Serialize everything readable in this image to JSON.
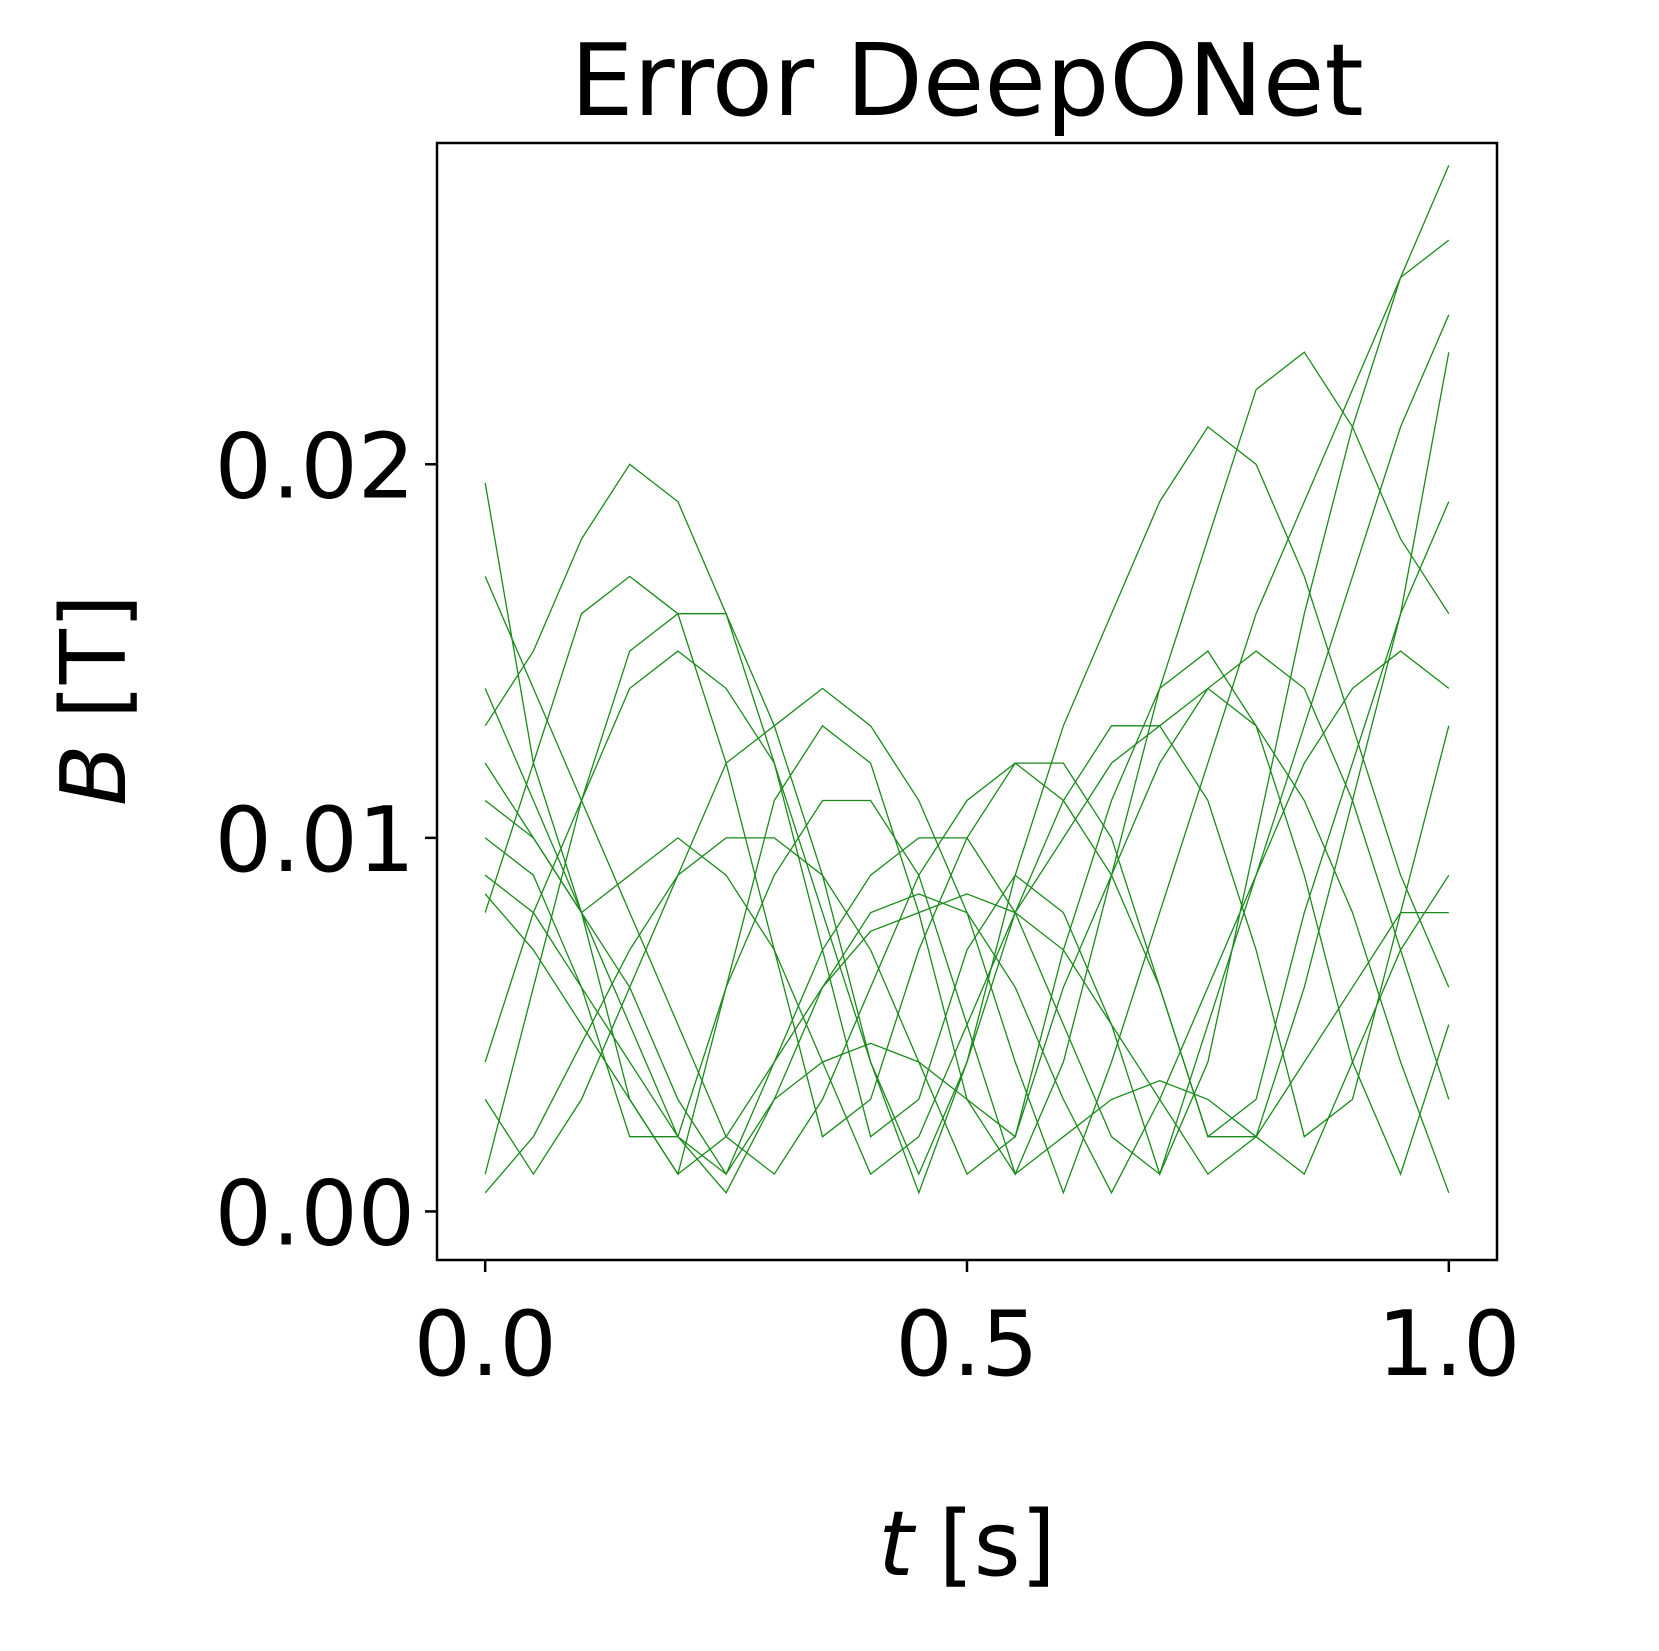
{
  "chart_data": {
    "type": "line",
    "title": "Error DeepONet",
    "xlabel": {
      "symbol": "t",
      "unit": "[s]"
    },
    "ylabel": {
      "symbol": "B",
      "unit": "[T]"
    },
    "color": "#1a8a1a",
    "xlim": [
      -0.05,
      1.05
    ],
    "ylim": [
      -0.0013,
      0.0286
    ],
    "xticks": [
      {
        "value": 0,
        "label": "0.0"
      },
      {
        "value": 0.5,
        "label": "0.5"
      },
      {
        "value": 1,
        "label": "1.0"
      }
    ],
    "yticks": [
      {
        "value": 0,
        "label": "0.00"
      },
      0.01,
      0.02
    ],
    "x": [
      0,
      0.05,
      0.1,
      0.15,
      0.2,
      0.25,
      0.3,
      0.35,
      0.4,
      0.45,
      0.5,
      0.55,
      0.6,
      0.65,
      0.7,
      0.75,
      0.8,
      0.85,
      0.9,
      0.95,
      1
    ],
    "series": [
      {
        "values": [
          0.013,
          0.015,
          0.018,
          0.02,
          0.019,
          0.016,
          0.012,
          0.007,
          0.002,
          0.003,
          0.007,
          0.009,
          0.008,
          0.005,
          0.001,
          0.004,
          0.01,
          0.016,
          0.021,
          0.025,
          0.028
        ]
      },
      {
        "values": [
          0.0195,
          0.012,
          0.008,
          0.003,
          0.001,
          0.006,
          0.011,
          0.013,
          0.012,
          0.008,
          0.003,
          0.002,
          0.007,
          0.011,
          0.014,
          0.015,
          0.013,
          0.009,
          0.004,
          0.001,
          0.005
        ]
      },
      {
        "values": [
          0.001,
          0.006,
          0.011,
          0.015,
          0.016,
          0.016,
          0.013,
          0.009,
          0.004,
          0.001,
          0.004,
          0.008,
          0.011,
          0.013,
          0.013,
          0.011,
          0.007,
          0.002,
          0.003,
          0.008,
          0.013
        ]
      },
      {
        "values": [
          0.01,
          0.009,
          0.006,
          0.002,
          0.002,
          0.006,
          0.009,
          0.011,
          0.011,
          0.009,
          0.005,
          0.001,
          0.004,
          0.009,
          0.014,
          0.018,
          0.022,
          0.023,
          0.021,
          0.018,
          0.016
        ]
      },
      {
        "values": [
          0.008,
          0.012,
          0.016,
          0.017,
          0.016,
          0.012,
          0.007,
          0.002,
          0.003,
          0.007,
          0.01,
          0.012,
          0.012,
          0.01,
          0.006,
          0.002,
          0.003,
          0.008,
          0.012,
          0.016,
          0.019
        ]
      },
      {
        "values": [
          0.014,
          0.011,
          0.008,
          0.006,
          0.003,
          0.001,
          0.004,
          0.007,
          0.009,
          0.01,
          0.01,
          0.008,
          0.005,
          0.002,
          0.001,
          0.005,
          0.009,
          0.013,
          0.017,
          0.021,
          0.024
        ]
      },
      {
        "values": [
          0.0005,
          0.002,
          0.0045,
          0.007,
          0.009,
          0.01,
          0.01,
          0.009,
          0.007,
          0.004,
          0.001,
          0.002,
          0.006,
          0.009,
          0.012,
          0.014,
          0.015,
          0.014,
          0.011,
          0.007,
          0.003
        ]
      },
      {
        "values": [
          0.012,
          0.01,
          0.008,
          0.009,
          0.01,
          0.009,
          0.007,
          0.004,
          0.001,
          0.002,
          0.005,
          0.008,
          0.01,
          0.012,
          0.013,
          0.014,
          0.013,
          0.011,
          0.008,
          0.004,
          0.0005
        ]
      },
      {
        "values": [
          0.004,
          0.008,
          0.011,
          0.014,
          0.015,
          0.014,
          0.012,
          0.008,
          0.004,
          0.0005,
          0.004,
          0.009,
          0.013,
          0.016,
          0.019,
          0.021,
          0.02,
          0.017,
          0.013,
          0.009,
          0.006
        ]
      },
      {
        "values": [
          0.009,
          0.008,
          0.006,
          0.004,
          0.002,
          0.001,
          0.003,
          0.004,
          0.0045,
          0.004,
          0.003,
          0.001,
          0.002,
          0.003,
          0.0035,
          0.003,
          0.002,
          0.001,
          0.004,
          0.007,
          0.009
        ]
      },
      {
        "values": [
          0.003,
          0.001,
          0.003,
          0.006,
          0.009,
          0.012,
          0.013,
          0.014,
          0.013,
          0.011,
          0.008,
          0.004,
          0.0005,
          0.004,
          0.008,
          0.012,
          0.016,
          0.019,
          0.022,
          0.025,
          0.026
        ]
      },
      {
        "values": [
          0.011,
          0.01,
          0.008,
          0.005,
          0.002,
          0.0005,
          0.003,
          0.006,
          0.008,
          0.0085,
          0.008,
          0.006,
          0.003,
          0.0005,
          0.003,
          0.006,
          0.009,
          0.012,
          0.014,
          0.015,
          0.014
        ]
      },
      {
        "values": [
          0.0085,
          0.007,
          0.005,
          0.003,
          0.001,
          0.002,
          0.004,
          0.006,
          0.0075,
          0.008,
          0.0085,
          0.008,
          0.007,
          0.005,
          0.003,
          0.001,
          0.002,
          0.004,
          0.006,
          0.008,
          0.008
        ]
      },
      {
        "values": [
          0.017,
          0.014,
          0.011,
          0.008,
          0.005,
          0.002,
          0.001,
          0.003,
          0.006,
          0.009,
          0.011,
          0.012,
          0.011,
          0.009,
          0.006,
          0.002,
          0.002,
          0.006,
          0.011,
          0.016,
          0.023
        ]
      }
    ]
  }
}
